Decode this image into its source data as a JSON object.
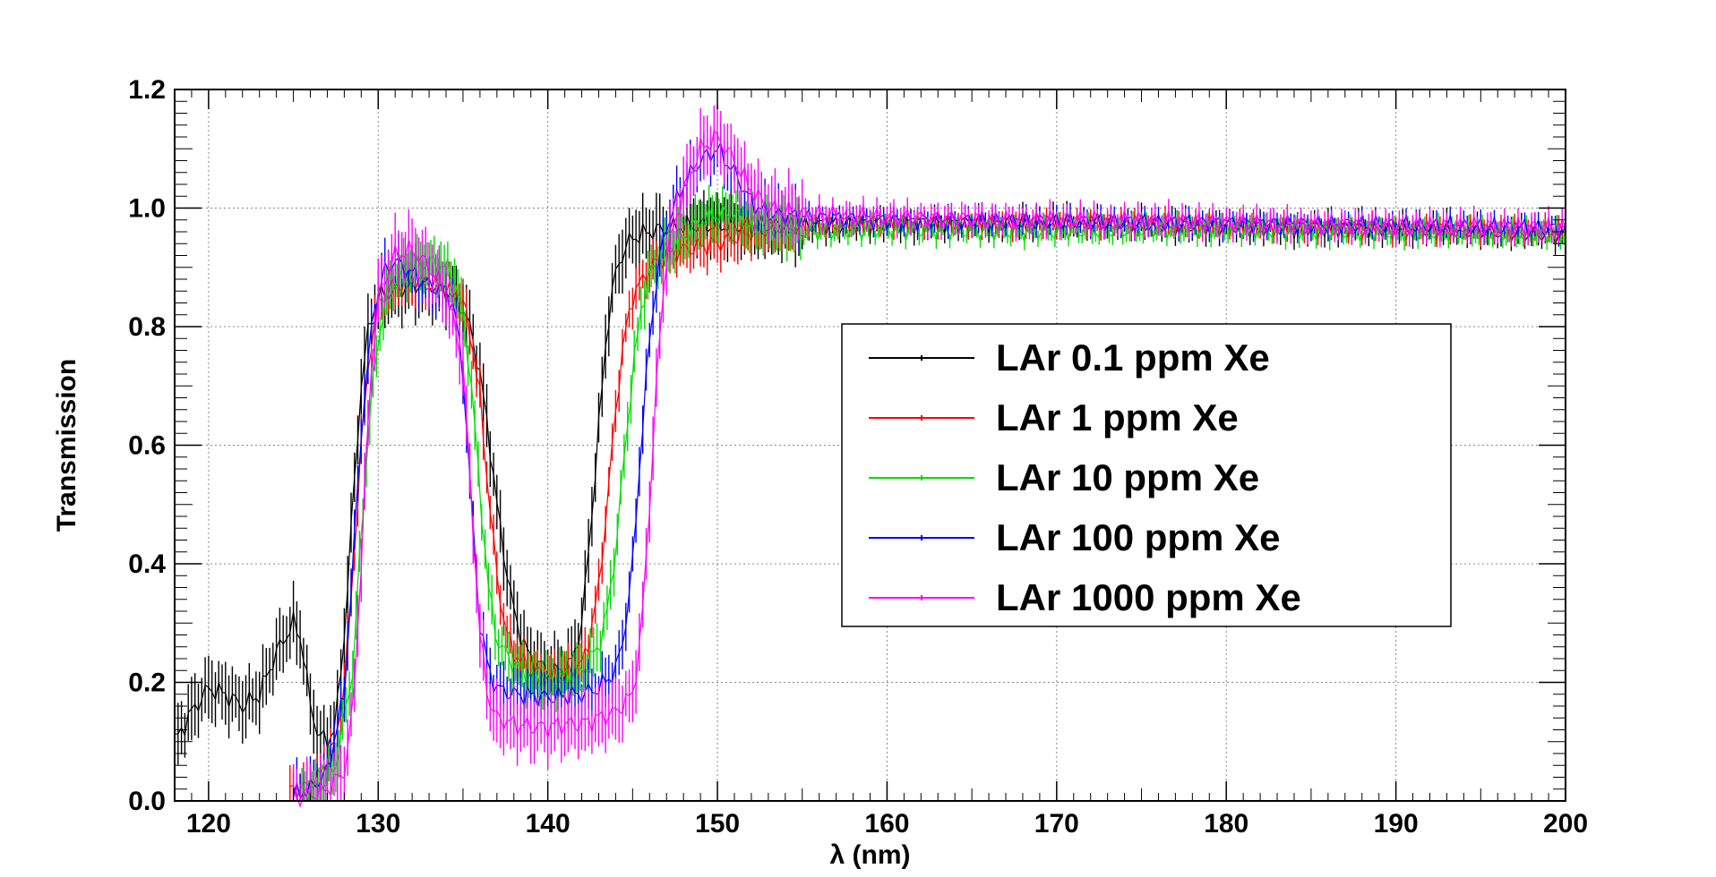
{
  "chart_data": {
    "type": "line",
    "title": "",
    "xlabel": "λ (nm)",
    "ylabel": "Transmission",
    "xlim": [
      118,
      200
    ],
    "ylim": [
      0,
      1.2
    ],
    "x_ticks": [
      120,
      130,
      140,
      150,
      160,
      170,
      180,
      190,
      200
    ],
    "x_tick_labels": [
      "120",
      "130",
      "140",
      "150",
      "160",
      "170",
      "180",
      "190",
      "200"
    ],
    "y_ticks": [
      0,
      0.2,
      0.4,
      0.6,
      0.8,
      1.0,
      1.2
    ],
    "y_tick_labels": [
      "0.0",
      "0.2",
      "0.4",
      "0.6",
      "0.8",
      "1.0",
      "1.2"
    ],
    "grid": true,
    "legend_position": "center-right",
    "series": [
      {
        "name": "LAr  0.1 ppm Xe",
        "color": "#000000",
        "err": 0.045,
        "points": [
          [
            118,
            0.1
          ],
          [
            119,
            0.15
          ],
          [
            120,
            0.19
          ],
          [
            121,
            0.18
          ],
          [
            122,
            0.16
          ],
          [
            123,
            0.18
          ],
          [
            124,
            0.25
          ],
          [
            125,
            0.3
          ],
          [
            125.5,
            0.27
          ],
          [
            126,
            0.16
          ],
          [
            126.5,
            0.11
          ],
          [
            127,
            0.1
          ],
          [
            127.5,
            0.13
          ],
          [
            128,
            0.28
          ],
          [
            128.5,
            0.5
          ],
          [
            129,
            0.7
          ],
          [
            129.5,
            0.81
          ],
          [
            130,
            0.85
          ],
          [
            131,
            0.86
          ],
          [
            132,
            0.87
          ],
          [
            133,
            0.87
          ],
          [
            134,
            0.86
          ],
          [
            135,
            0.83
          ],
          [
            135.5,
            0.79
          ],
          [
            136,
            0.72
          ],
          [
            136.5,
            0.62
          ],
          [
            137,
            0.5
          ],
          [
            137.5,
            0.4
          ],
          [
            138,
            0.32
          ],
          [
            138.5,
            0.27
          ],
          [
            139,
            0.24
          ],
          [
            140,
            0.22
          ],
          [
            141,
            0.22
          ],
          [
            141.5,
            0.24
          ],
          [
            142,
            0.3
          ],
          [
            142.5,
            0.45
          ],
          [
            143,
            0.63
          ],
          [
            143.5,
            0.8
          ],
          [
            144,
            0.89
          ],
          [
            144.5,
            0.93
          ],
          [
            145,
            0.95
          ],
          [
            146,
            0.96
          ],
          [
            148,
            0.97
          ],
          [
            150,
            0.97
          ],
          [
            152,
            0.97
          ],
          [
            155,
            0.97
          ],
          [
            160,
            0.975
          ],
          [
            170,
            0.975
          ],
          [
            180,
            0.97
          ],
          [
            190,
            0.965
          ],
          [
            200,
            0.955
          ]
        ]
      },
      {
        "name": "LAr    1 ppm Xe",
        "color": "#ff0000",
        "err": 0.03,
        "points": [
          [
            124.8,
            0.02
          ],
          [
            125.5,
            0.02
          ],
          [
            126.5,
            0.04
          ],
          [
            127.5,
            0.1
          ],
          [
            128,
            0.2
          ],
          [
            128.5,
            0.38
          ],
          [
            129,
            0.6
          ],
          [
            129.5,
            0.76
          ],
          [
            130,
            0.84
          ],
          [
            131,
            0.87
          ],
          [
            132,
            0.875
          ],
          [
            133,
            0.87
          ],
          [
            134,
            0.865
          ],
          [
            135,
            0.84
          ],
          [
            135.5,
            0.78
          ],
          [
            136,
            0.68
          ],
          [
            136.5,
            0.52
          ],
          [
            137,
            0.38
          ],
          [
            137.5,
            0.29
          ],
          [
            138,
            0.25
          ],
          [
            139,
            0.22
          ],
          [
            140,
            0.21
          ],
          [
            141,
            0.215
          ],
          [
            142,
            0.23
          ],
          [
            142.5,
            0.28
          ],
          [
            143,
            0.36
          ],
          [
            143.5,
            0.5
          ],
          [
            144,
            0.66
          ],
          [
            144.5,
            0.78
          ],
          [
            145,
            0.85
          ],
          [
            146,
            0.9
          ],
          [
            147,
            0.92
          ],
          [
            148,
            0.93
          ],
          [
            150,
            0.94
          ],
          [
            152,
            0.96
          ],
          [
            155,
            0.97
          ],
          [
            160,
            0.975
          ],
          [
            170,
            0.975
          ],
          [
            180,
            0.97
          ],
          [
            190,
            0.965
          ],
          [
            200,
            0.96
          ]
        ]
      },
      {
        "name": "LAr   10 ppm Xe",
        "color": "#00dd00",
        "err": 0.035,
        "points": [
          [
            125.5,
            0.01
          ],
          [
            126.5,
            0.02
          ],
          [
            127.5,
            0.06
          ],
          [
            128.5,
            0.22
          ],
          [
            129,
            0.45
          ],
          [
            129.5,
            0.65
          ],
          [
            130,
            0.78
          ],
          [
            130.5,
            0.85
          ],
          [
            131,
            0.88
          ],
          [
            132,
            0.9
          ],
          [
            133,
            0.91
          ],
          [
            134,
            0.9
          ],
          [
            134.5,
            0.88
          ],
          [
            135,
            0.82
          ],
          [
            135.5,
            0.7
          ],
          [
            136,
            0.52
          ],
          [
            136.5,
            0.36
          ],
          [
            137,
            0.27
          ],
          [
            138,
            0.23
          ],
          [
            139,
            0.21
          ],
          [
            140,
            0.205
          ],
          [
            141,
            0.21
          ],
          [
            142,
            0.22
          ],
          [
            143,
            0.26
          ],
          [
            143.5,
            0.32
          ],
          [
            144,
            0.42
          ],
          [
            144.5,
            0.58
          ],
          [
            145,
            0.72
          ],
          [
            145.5,
            0.83
          ],
          [
            146,
            0.89
          ],
          [
            147,
            0.93
          ],
          [
            148,
            0.95
          ],
          [
            149,
            0.98
          ],
          [
            150,
            0.99
          ],
          [
            151,
            0.99
          ],
          [
            152,
            0.97
          ],
          [
            155,
            0.96
          ],
          [
            160,
            0.965
          ],
          [
            170,
            0.96
          ],
          [
            180,
            0.965
          ],
          [
            190,
            0.96
          ],
          [
            200,
            0.955
          ]
        ]
      },
      {
        "name": "LAr  100 ppm Xe",
        "color": "#0000ff",
        "err": 0.035,
        "points": [
          [
            125,
            0.01
          ],
          [
            126,
            0.02
          ],
          [
            127,
            0.05
          ],
          [
            128,
            0.18
          ],
          [
            128.5,
            0.4
          ],
          [
            129,
            0.62
          ],
          [
            129.5,
            0.77
          ],
          [
            130,
            0.86
          ],
          [
            130.5,
            0.9
          ],
          [
            131,
            0.91
          ],
          [
            132,
            0.89
          ],
          [
            133,
            0.87
          ],
          [
            134,
            0.86
          ],
          [
            134.5,
            0.83
          ],
          [
            135,
            0.72
          ],
          [
            135.5,
            0.5
          ],
          [
            136,
            0.3
          ],
          [
            136.5,
            0.22
          ],
          [
            137,
            0.19
          ],
          [
            138,
            0.18
          ],
          [
            140,
            0.175
          ],
          [
            142,
            0.18
          ],
          [
            143,
            0.19
          ],
          [
            144,
            0.22
          ],
          [
            144.5,
            0.28
          ],
          [
            145,
            0.4
          ],
          [
            145.5,
            0.6
          ],
          [
            146,
            0.78
          ],
          [
            146.5,
            0.9
          ],
          [
            147,
            0.97
          ],
          [
            148,
            1.04
          ],
          [
            149,
            1.08
          ],
          [
            150,
            1.1
          ],
          [
            151,
            1.06
          ],
          [
            152,
            1.01
          ],
          [
            153,
            0.99
          ],
          [
            155,
            0.985
          ],
          [
            160,
            0.98
          ],
          [
            170,
            0.975
          ],
          [
            180,
            0.975
          ],
          [
            190,
            0.97
          ],
          [
            200,
            0.965
          ]
        ]
      },
      {
        "name": "LAr 1000 ppm Xe",
        "color": "#ff00ff",
        "err": 0.045,
        "points": [
          [
            125,
            0.005
          ],
          [
            126,
            0.01
          ],
          [
            127,
            0.02
          ],
          [
            128,
            0.05
          ],
          [
            128.5,
            0.15
          ],
          [
            129,
            0.4
          ],
          [
            129.5,
            0.7
          ],
          [
            130,
            0.85
          ],
          [
            131,
            0.92
          ],
          [
            132,
            0.93
          ],
          [
            133,
            0.9
          ],
          [
            134,
            0.86
          ],
          [
            135,
            0.74
          ],
          [
            135.5,
            0.5
          ],
          [
            136,
            0.28
          ],
          [
            136.5,
            0.17
          ],
          [
            137,
            0.14
          ],
          [
            138,
            0.13
          ],
          [
            139,
            0.125
          ],
          [
            140,
            0.125
          ],
          [
            141,
            0.13
          ],
          [
            142,
            0.13
          ],
          [
            143,
            0.14
          ],
          [
            144,
            0.15
          ],
          [
            145,
            0.18
          ],
          [
            145.5,
            0.28
          ],
          [
            146,
            0.5
          ],
          [
            146.5,
            0.75
          ],
          [
            147,
            0.92
          ],
          [
            148,
            1.03
          ],
          [
            149,
            1.1
          ],
          [
            150,
            1.12
          ],
          [
            151,
            1.08
          ],
          [
            152,
            1.03
          ],
          [
            153,
            1.0
          ],
          [
            155,
            0.99
          ],
          [
            160,
            0.985
          ],
          [
            170,
            0.98
          ],
          [
            180,
            0.975
          ],
          [
            190,
            0.97
          ],
          [
            200,
            0.965
          ]
        ]
      }
    ]
  }
}
